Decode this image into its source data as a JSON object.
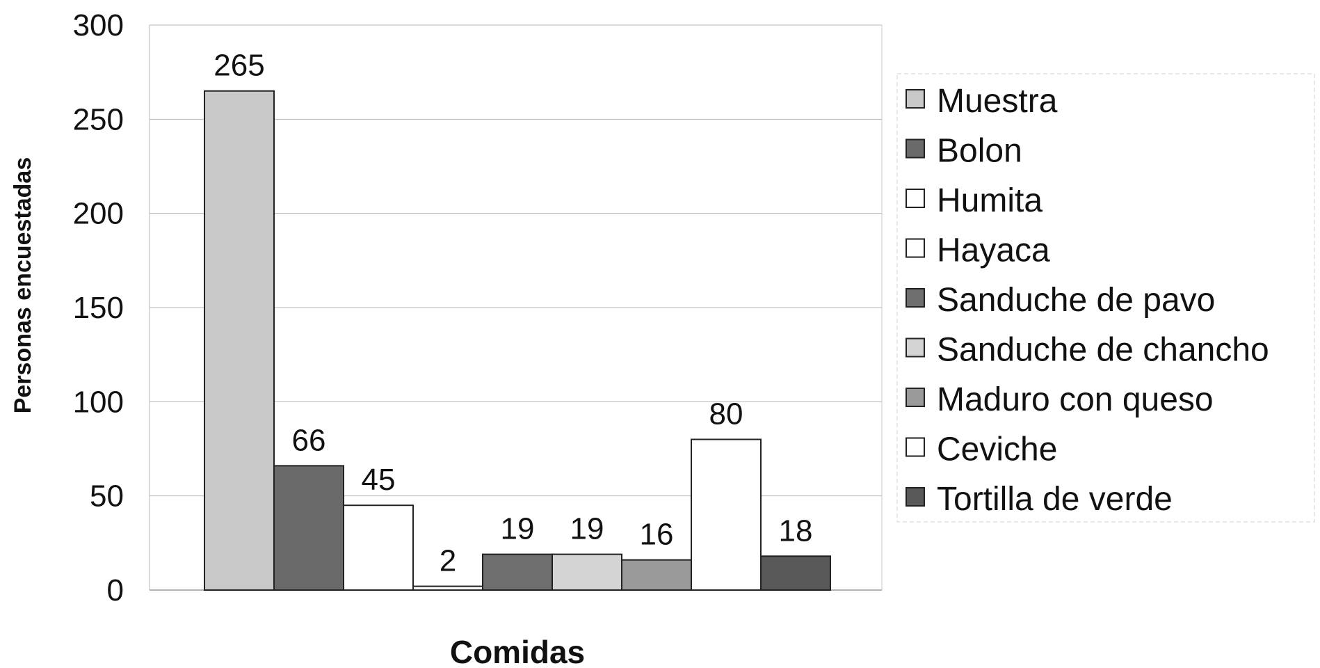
{
  "chart_data": {
    "type": "bar",
    "categories": [
      "Muestra",
      "Bolon",
      "Humita",
      "Hayaca",
      "Sanduche de pavo",
      "Sanduche de chancho",
      "Maduro con queso",
      "Ceviche",
      "Tortilla de verde"
    ],
    "values": [
      265,
      66,
      45,
      2,
      19,
      19,
      16,
      80,
      18
    ],
    "data_labels": [
      "265",
      "66",
      "45",
      "2",
      "19",
      "19",
      "16",
      "80",
      "18"
    ],
    "colors": [
      "#c8c8c8",
      "#6a6a6a",
      "#ffffff",
      "#ffffff",
      "#6e6e6e",
      "#d4d4d4",
      "#9a9a9a",
      "#ffffff",
      "#595959"
    ],
    "xlabel": "Comidas",
    "ylabel": "Personas encuestadas",
    "ylim": [
      0,
      300
    ],
    "yticks": [
      0,
      50,
      100,
      150,
      200,
      250,
      300
    ],
    "ytick_labels": [
      "0",
      "50",
      "100",
      "150",
      "200",
      "250",
      "300"
    ],
    "grid": true,
    "legend_position": "right"
  }
}
